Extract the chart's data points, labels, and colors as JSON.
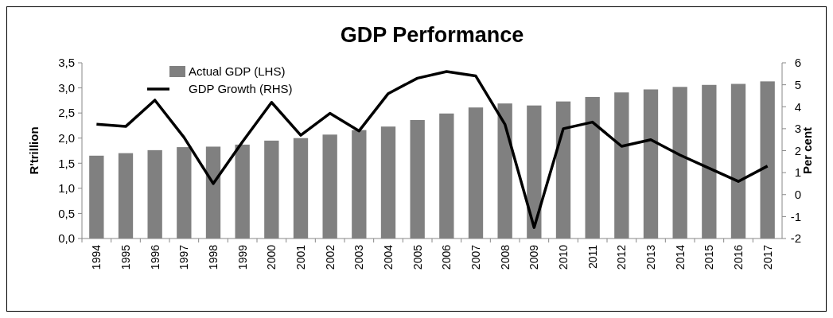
{
  "chart_data": {
    "type": "bar",
    "title": "GDP Performance",
    "ylabel": "R'trillion",
    "y2label": "Per cent",
    "categories": [
      "1994",
      "1995",
      "1996",
      "1997",
      "1998",
      "1999",
      "2000",
      "2001",
      "2002",
      "2003",
      "2004",
      "2005",
      "2006",
      "2007",
      "2008",
      "2009",
      "2010",
      "2011",
      "2012",
      "2013",
      "2014",
      "2015",
      "2016",
      "2017"
    ],
    "series": [
      {
        "name": "Actual GDP (LHS)",
        "color": "#808080",
        "values": [
          1.65,
          1.7,
          1.76,
          1.82,
          1.83,
          1.87,
          1.95,
          2.0,
          2.07,
          2.16,
          2.23,
          2.36,
          2.49,
          2.61,
          2.69,
          2.65,
          2.73,
          2.82,
          2.91,
          2.97,
          3.02,
          3.06,
          3.08,
          3.13
        ]
      },
      {
        "name": "GDP Growth (RHS)",
        "type": "line",
        "axis": "y2",
        "color": "#000000",
        "values": [
          3.2,
          3.1,
          4.3,
          2.6,
          0.5,
          2.4,
          4.2,
          2.7,
          3.7,
          2.9,
          4.6,
          5.3,
          5.6,
          5.4,
          3.2,
          -1.5,
          3.0,
          3.3,
          2.2,
          2.5,
          1.8,
          1.2,
          0.6,
          1.3
        ]
      }
    ],
    "ylim": [
      0,
      3.5
    ],
    "yticks": [
      {
        "value": 0,
        "label": "0,0"
      },
      {
        "value": 0.5,
        "label": "0,5"
      },
      {
        "value": 1,
        "label": "1,0"
      },
      {
        "value": 1.5,
        "label": "1,5"
      },
      {
        "value": 2,
        "label": "2,0"
      },
      {
        "value": 2.5,
        "label": "2,5"
      },
      {
        "value": 3,
        "label": "3,0"
      },
      {
        "value": 3.5,
        "label": "3,5"
      }
    ],
    "y2lim": [
      -2,
      6
    ],
    "y2ticks": [
      -2,
      -1,
      0,
      1,
      2,
      3,
      4,
      5,
      6
    ],
    "legend": "top left",
    "marker": "none",
    "line_style": "solid"
  }
}
